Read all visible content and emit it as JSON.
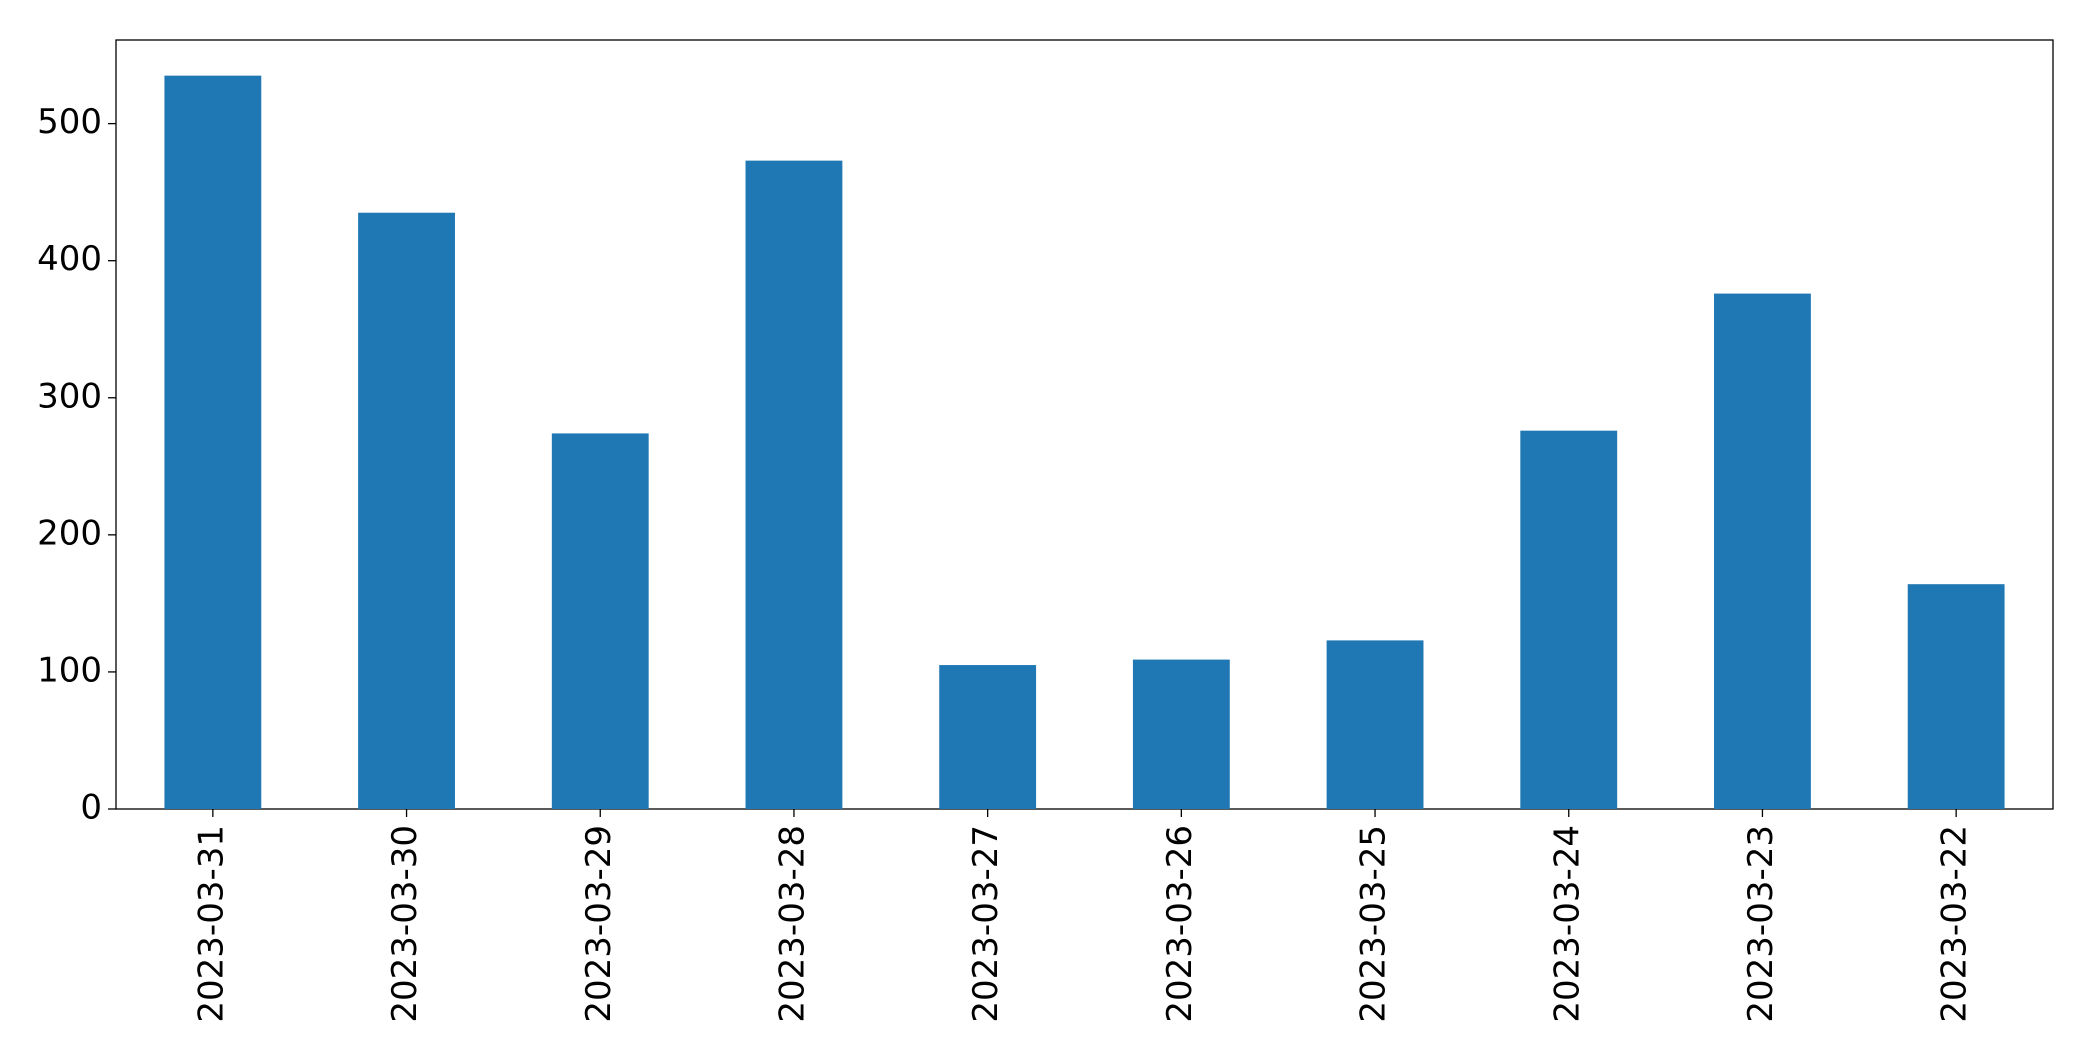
{
  "chart_data": {
    "type": "bar",
    "categories": [
      "2023-03-31",
      "2023-03-30",
      "2023-03-29",
      "2023-03-28",
      "2023-03-27",
      "2023-03-26",
      "2023-03-25",
      "2023-03-24",
      "2023-03-23",
      "2023-03-22"
    ],
    "values": [
      535,
      435,
      274,
      473,
      105,
      109,
      123,
      276,
      376,
      164
    ],
    "color": "#1f77b4",
    "ylim": [
      0,
      561
    ],
    "yticks": [
      0,
      100,
      200,
      300,
      400,
      500
    ],
    "grid": false
  }
}
